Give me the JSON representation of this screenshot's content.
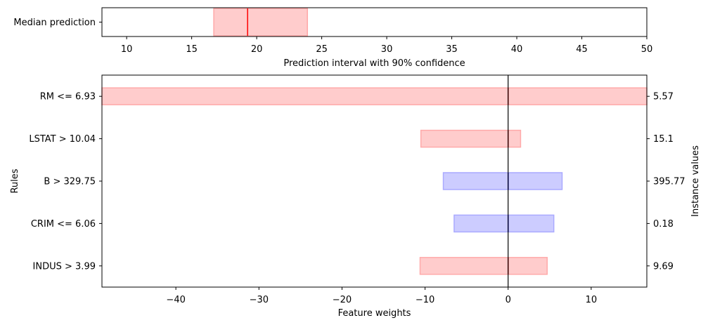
{
  "chart_data": [
    {
      "type": "bar",
      "orientation": "horizontal",
      "xlabel": "Prediction interval with 90% confidence",
      "xlim": [
        8.1,
        50
      ],
      "xticks": [
        10,
        15,
        20,
        25,
        30,
        35,
        40,
        45,
        50
      ],
      "yticklabels": [
        "Median prediction"
      ],
      "interval": {
        "low": 16.7,
        "high": 23.9
      },
      "median": 19.3,
      "colors": {
        "interval_fill": "#ffcccc",
        "interval_edge": "#ffaaaa",
        "median_line": "#ff0000"
      }
    },
    {
      "type": "bar",
      "orientation": "horizontal",
      "xlabel": "Feature weights",
      "ylabel": "Rules",
      "ylabel_right": "Instance values",
      "xlim": [
        -48.9,
        16.7
      ],
      "xticks": [
        -40,
        -30,
        -20,
        -10,
        0,
        10
      ],
      "xticklabels": [
        "−40",
        "−30",
        "−20",
        "−10",
        "0",
        "10"
      ],
      "zero_line": 0,
      "rules": [
        {
          "rule": "RM <= 6.93",
          "instance_value": "5.57",
          "low": -48.9,
          "high": 16.7,
          "weight": 0.0,
          "sign": "negative"
        },
        {
          "rule": "LSTAT > 10.04",
          "instance_value": "15.1",
          "low": -10.5,
          "high": 1.5,
          "weight": 0.0,
          "sign": "negative"
        },
        {
          "rule": "B > 329.75",
          "instance_value": "395.77",
          "low": -7.8,
          "high": 6.5,
          "weight": 0.0,
          "sign": "positive"
        },
        {
          "rule": "CRIM <= 6.06",
          "instance_value": "0.18",
          "low": -6.5,
          "high": 5.5,
          "weight": 0.0,
          "sign": "positive"
        },
        {
          "rule": "INDUS > 3.99",
          "instance_value": "9.69",
          "low": -10.6,
          "high": 4.7,
          "weight": 0.0,
          "sign": "negative"
        }
      ],
      "colors": {
        "negative_fill": "#ffcccc",
        "negative_edge": "#ffaaaa",
        "negative_line": "#ff0000",
        "positive_fill": "#ccccff",
        "positive_edge": "#aaaaff",
        "positive_line": "#0000ff"
      }
    }
  ]
}
